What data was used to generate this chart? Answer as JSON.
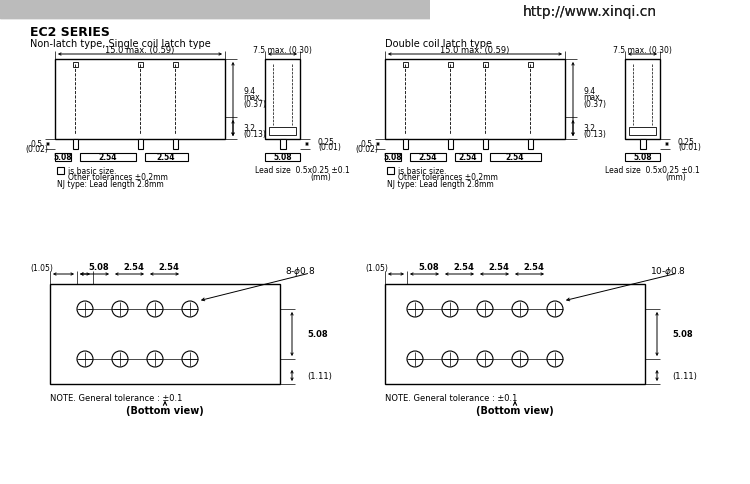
{
  "title": "EC2 SERIES",
  "url": "http://www.xinqi.cn",
  "left_subtitle": "Non-latch type, Single coil latch type",
  "right_subtitle": "Double coil latch type",
  "bg_color": "#ffffff",
  "line_color": "#000000",
  "note": "NOTE. General tolerance : ±0.1",
  "bottom_view": "(Bottom view)",
  "is_basic": "is basic size.",
  "other_tol": "Other tolerances ±0.2mm",
  "nj_type": "NJ type: Lead length 2.8mm",
  "mm": "(mm)",
  "lead_size": "Lead size  0.5x0.25 ±0.1",
  "stripe_color": "#bbbbbb",
  "url_color": "#222222"
}
